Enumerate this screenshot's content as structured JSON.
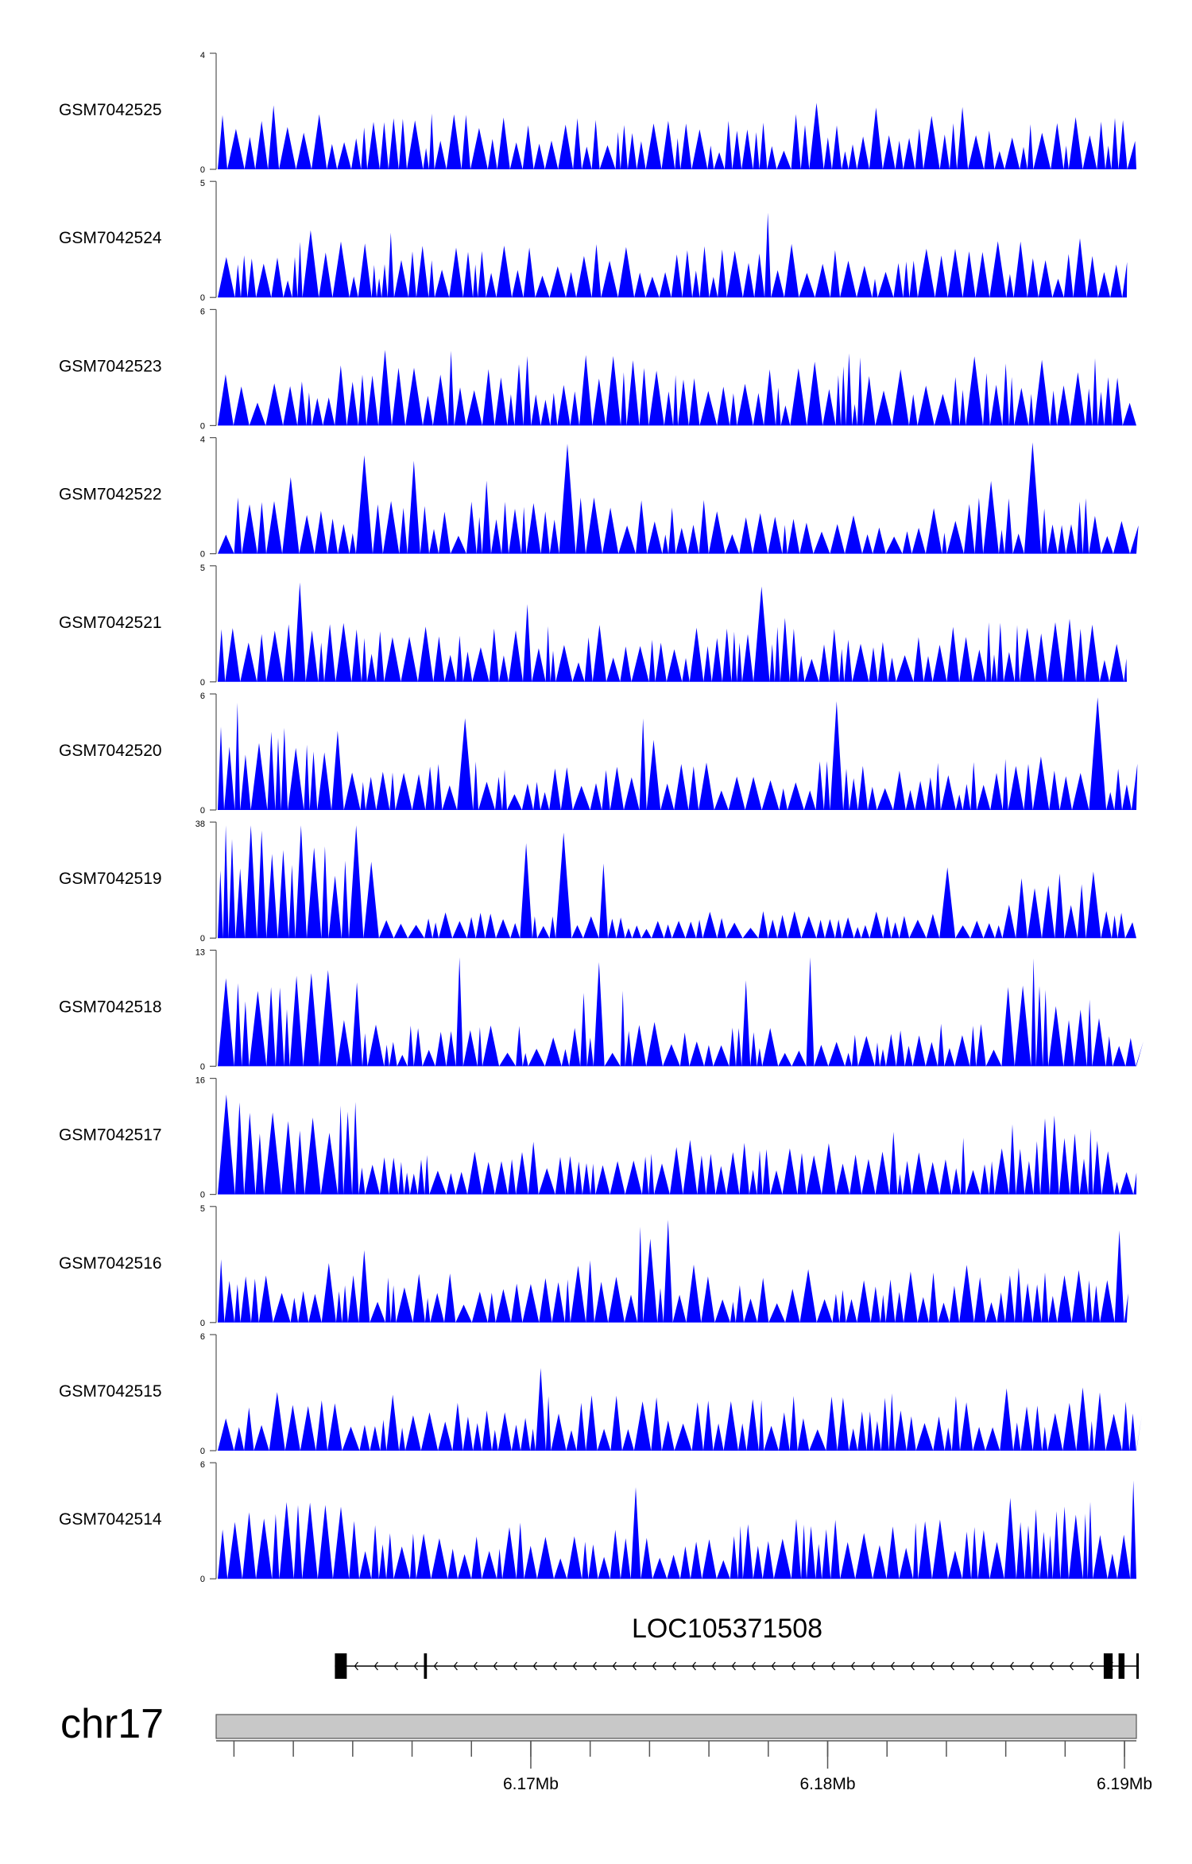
{
  "chart_data": {
    "type": "area",
    "colors": {
      "signal": "#0000ff",
      "axis": "#000000",
      "ideogram_fill": "#c8c8c8",
      "ideogram_stroke": "#555555",
      "gene": "#000000"
    },
    "tracks": [
      {
        "name": "GSM7042525",
        "ymax": "4",
        "ymin": "0"
      },
      {
        "name": "GSM7042524",
        "ymax": "5",
        "ymin": "0"
      },
      {
        "name": "GSM7042523",
        "ymax": "6",
        "ymin": "0"
      },
      {
        "name": "GSM7042522",
        "ymax": "4",
        "ymin": "0"
      },
      {
        "name": "GSM7042521",
        "ymax": "5",
        "ymin": "0"
      },
      {
        "name": "GSM7042520",
        "ymax": "6",
        "ymin": "0"
      },
      {
        "name": "GSM7042519",
        "ymax": "38",
        "ymin": "0"
      },
      {
        "name": "GSM7042518",
        "ymax": "13",
        "ymin": "0"
      },
      {
        "name": "GSM7042517",
        "ymax": "16",
        "ymin": "0"
      },
      {
        "name": "GSM7042516",
        "ymax": "5",
        "ymin": "0"
      },
      {
        "name": "GSM7042515",
        "ymax": "6",
        "ymin": "0"
      },
      {
        "name": "GSM7042514",
        "ymax": "6",
        "ymin": "0"
      }
    ],
    "gene": {
      "name": "LOC105371508",
      "strand": "-",
      "start_mb": 6.1634,
      "end_mb": 6.1904,
      "exons_mb": [
        [
          6.1634,
          6.1638
        ],
        [
          6.1664,
          6.1665
        ],
        [
          6.1893,
          6.1896
        ],
        [
          6.1898,
          6.19
        ],
        [
          6.1904,
          6.1904
        ]
      ]
    },
    "chromosome": "chr17",
    "x_range_mb": [
      6.1594,
      6.1904
    ],
    "x_ticks": [
      {
        "value": 6.17,
        "label": "6.17Mb"
      },
      {
        "value": 6.18,
        "label": "6.18Mb"
      },
      {
        "value": 6.19,
        "label": "6.19Mb"
      }
    ],
    "minor_tick_step_mb": 0.002
  }
}
